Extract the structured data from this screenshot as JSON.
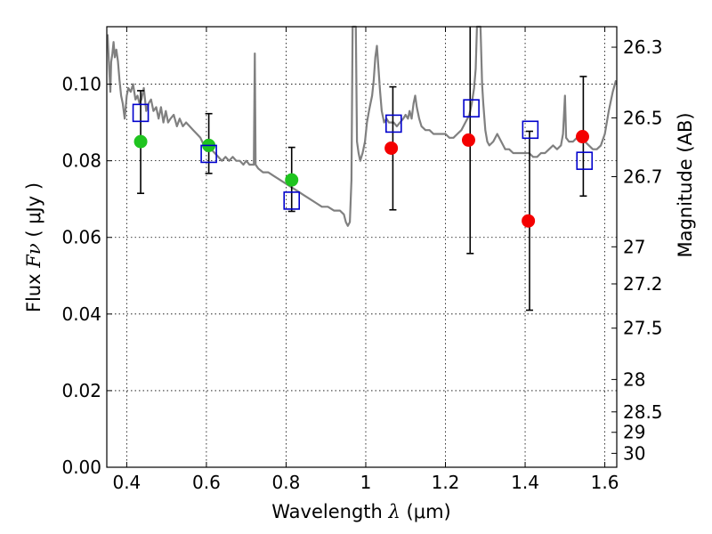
{
  "chart_data": {
    "type": "scatter",
    "xlabel": {
      "prefix": "Wavelength",
      "symbol": "λ",
      "unit": "(μm)"
    },
    "ylabel": {
      "prefix": "Flux",
      "symbol": "Fν",
      "unit": "( μJy )"
    },
    "y2label": "Magnitude (AB)",
    "xlim": [
      0.35,
      1.63
    ],
    "ylim": [
      0.0,
      0.115
    ],
    "x_ticks": [
      0.4,
      0.6,
      0.8,
      1.0,
      1.2,
      1.4,
      1.6
    ],
    "x_tick_labels": [
      "0.4",
      "0.6",
      "0.8",
      "1",
      "1.2",
      "1.4",
      "1.6"
    ],
    "y_ticks": [
      0.0,
      0.02,
      0.04,
      0.06,
      0.08,
      0.1
    ],
    "y_tick_labels": [
      "0.00",
      "0.02",
      "0.04",
      "0.06",
      "0.08",
      "0.10"
    ],
    "y2_ticks": [
      {
        "label": "26.3",
        "mag": 26.3
      },
      {
        "label": "26.5",
        "mag": 26.5
      },
      {
        "label": "26.7",
        "mag": 26.7
      },
      {
        "label": "27",
        "mag": 27.0
      },
      {
        "label": "27.2",
        "mag": 27.2
      },
      {
        "label": "27.5",
        "mag": 27.5
      },
      {
        "label": "28",
        "mag": 28.0
      },
      {
        "label": "28.5",
        "mag": 28.5
      },
      {
        "label": "29",
        "mag": 29.0
      },
      {
        "label": "30",
        "mag": 30.0
      }
    ],
    "grid": true,
    "colors": {
      "model": "#808080",
      "green": "#1fc41f",
      "red": "#f40000",
      "square": "#0000cc",
      "errorbar": "#000000"
    },
    "series": [
      {
        "type": "line",
        "color": "#808080",
        "points": [
          [
            0.352,
            0.113
          ],
          [
            0.356,
            0.104
          ],
          [
            0.359,
            0.098
          ],
          [
            0.361,
            0.1058
          ],
          [
            0.364,
            0.108
          ],
          [
            0.367,
            0.111
          ],
          [
            0.37,
            0.107
          ],
          [
            0.374,
            0.109
          ],
          [
            0.378,
            0.106
          ],
          [
            0.382,
            0.101
          ],
          [
            0.386,
            0.097
          ],
          [
            0.39,
            0.095
          ],
          [
            0.395,
            0.091
          ],
          [
            0.4,
            0.097
          ],
          [
            0.404,
            0.099
          ],
          [
            0.41,
            0.098
          ],
          [
            0.416,
            0.1
          ],
          [
            0.422,
            0.096
          ],
          [
            0.427,
            0.097
          ],
          [
            0.432,
            0.095
          ],
          [
            0.437,
            0.096
          ],
          [
            0.443,
            0.099
          ],
          [
            0.449,
            0.093
          ],
          [
            0.455,
            0.095
          ],
          [
            0.461,
            0.096
          ],
          [
            0.467,
            0.093
          ],
          [
            0.474,
            0.094
          ],
          [
            0.48,
            0.091
          ],
          [
            0.486,
            0.094
          ],
          [
            0.492,
            0.09
          ],
          [
            0.498,
            0.093
          ],
          [
            0.504,
            0.09
          ],
          [
            0.51,
            0.091
          ],
          [
            0.518,
            0.092
          ],
          [
            0.526,
            0.089
          ],
          [
            0.533,
            0.091
          ],
          [
            0.541,
            0.089
          ],
          [
            0.549,
            0.09
          ],
          [
            0.558,
            0.089
          ],
          [
            0.567,
            0.088
          ],
          [
            0.576,
            0.087
          ],
          [
            0.585,
            0.086
          ],
          [
            0.594,
            0.084
          ],
          [
            0.603,
            0.084
          ],
          [
            0.612,
            0.083
          ],
          [
            0.621,
            0.082
          ],
          [
            0.63,
            0.081
          ],
          [
            0.639,
            0.08
          ],
          [
            0.648,
            0.081
          ],
          [
            0.657,
            0.08
          ],
          [
            0.666,
            0.081
          ],
          [
            0.675,
            0.08
          ],
          [
            0.684,
            0.08
          ],
          [
            0.693,
            0.079
          ],
          [
            0.7,
            0.08
          ],
          [
            0.708,
            0.079
          ],
          [
            0.715,
            0.079
          ],
          [
            0.719,
            0.079
          ],
          [
            0.7215,
            0.108
          ],
          [
            0.7235,
            0.079
          ],
          [
            0.73,
            0.078
          ],
          [
            0.742,
            0.077
          ],
          [
            0.755,
            0.077
          ],
          [
            0.77,
            0.076
          ],
          [
            0.785,
            0.075
          ],
          [
            0.8,
            0.074
          ],
          [
            0.815,
            0.073
          ],
          [
            0.83,
            0.072
          ],
          [
            0.845,
            0.071
          ],
          [
            0.86,
            0.07
          ],
          [
            0.875,
            0.069
          ],
          [
            0.89,
            0.068
          ],
          [
            0.905,
            0.068
          ],
          [
            0.92,
            0.067
          ],
          [
            0.935,
            0.067
          ],
          [
            0.945,
            0.066
          ],
          [
            0.95,
            0.064
          ],
          [
            0.955,
            0.063
          ],
          [
            0.96,
            0.064
          ],
          [
            0.964,
            0.075
          ],
          [
            0.967,
            0.115
          ],
          [
            0.975,
            0.115
          ],
          [
            0.978,
            0.085
          ],
          [
            0.982,
            0.082
          ],
          [
            0.986,
            0.08
          ],
          [
            0.992,
            0.082
          ],
          [
            0.998,
            0.085
          ],
          [
            1.003,
            0.09
          ],
          [
            1.008,
            0.093
          ],
          [
            1.012,
            0.095
          ],
          [
            1.016,
            0.097
          ],
          [
            1.02,
            0.101
          ],
          [
            1.024,
            0.107
          ],
          [
            1.028,
            0.11
          ],
          [
            1.032,
            0.104
          ],
          [
            1.036,
            0.098
          ],
          [
            1.04,
            0.093
          ],
          [
            1.046,
            0.09
          ],
          [
            1.052,
            0.091
          ],
          [
            1.058,
            0.09
          ],
          [
            1.064,
            0.09
          ],
          [
            1.07,
            0.09
          ],
          [
            1.078,
            0.089
          ],
          [
            1.086,
            0.09
          ],
          [
            1.094,
            0.091
          ],
          [
            1.1,
            0.092
          ],
          [
            1.106,
            0.091
          ],
          [
            1.11,
            0.093
          ],
          [
            1.115,
            0.091
          ],
          [
            1.12,
            0.095
          ],
          [
            1.124,
            0.097
          ],
          [
            1.128,
            0.094
          ],
          [
            1.134,
            0.091
          ],
          [
            1.14,
            0.089
          ],
          [
            1.15,
            0.088
          ],
          [
            1.16,
            0.088
          ],
          [
            1.17,
            0.087
          ],
          [
            1.18,
            0.087
          ],
          [
            1.19,
            0.087
          ],
          [
            1.2,
            0.087
          ],
          [
            1.21,
            0.086
          ],
          [
            1.22,
            0.086
          ],
          [
            1.23,
            0.087
          ],
          [
            1.24,
            0.088
          ],
          [
            1.25,
            0.09
          ],
          [
            1.26,
            0.092
          ],
          [
            1.266,
            0.095
          ],
          [
            1.272,
            0.099
          ],
          [
            1.276,
            0.104
          ],
          [
            1.279,
            0.115
          ],
          [
            1.288,
            0.115
          ],
          [
            1.292,
            0.1
          ],
          [
            1.295,
            0.095
          ],
          [
            1.3,
            0.088
          ],
          [
            1.305,
            0.085
          ],
          [
            1.31,
            0.084
          ],
          [
            1.32,
            0.085
          ],
          [
            1.33,
            0.087
          ],
          [
            1.34,
            0.085
          ],
          [
            1.35,
            0.083
          ],
          [
            1.36,
            0.083
          ],
          [
            1.37,
            0.082
          ],
          [
            1.38,
            0.082
          ],
          [
            1.39,
            0.082
          ],
          [
            1.4,
            0.082
          ],
          [
            1.41,
            0.082
          ],
          [
            1.42,
            0.081
          ],
          [
            1.43,
            0.081
          ],
          [
            1.44,
            0.082
          ],
          [
            1.45,
            0.082
          ],
          [
            1.46,
            0.083
          ],
          [
            1.47,
            0.084
          ],
          [
            1.48,
            0.083
          ],
          [
            1.49,
            0.084
          ],
          [
            1.495,
            0.087
          ],
          [
            1.5,
            0.097
          ],
          [
            1.503,
            0.086
          ],
          [
            1.51,
            0.085
          ],
          [
            1.52,
            0.085
          ],
          [
            1.53,
            0.086
          ],
          [
            1.54,
            0.085
          ],
          [
            1.55,
            0.085
          ],
          [
            1.56,
            0.084
          ],
          [
            1.57,
            0.083
          ],
          [
            1.58,
            0.083
          ],
          [
            1.59,
            0.084
          ],
          [
            1.6,
            0.087
          ],
          [
            1.61,
            0.093
          ],
          [
            1.62,
            0.098
          ],
          [
            1.628,
            0.101
          ]
        ]
      },
      {
        "type": "scatter",
        "marker": "circle",
        "color": "#1fc41f",
        "points": [
          {
            "x": 0.435,
            "y": 0.085
          },
          {
            "x": 0.606,
            "y": 0.084
          },
          {
            "x": 0.814,
            "y": 0.075
          }
        ]
      },
      {
        "type": "scatter",
        "marker": "circle",
        "color": "#f40000",
        "points": [
          {
            "x": 1.064,
            "y": 0.0833
          },
          {
            "x": 1.258,
            "y": 0.0854
          },
          {
            "x": 1.408,
            "y": 0.0643
          },
          {
            "x": 1.544,
            "y": 0.0863
          }
        ]
      },
      {
        "type": "scatter",
        "marker": "open-square",
        "color": "#0000cc",
        "points": [
          {
            "x": 0.435,
            "y": 0.0925
          },
          {
            "x": 0.606,
            "y": 0.0818
          },
          {
            "x": 0.814,
            "y": 0.0696
          },
          {
            "x": 1.07,
            "y": 0.0897
          },
          {
            "x": 1.265,
            "y": 0.0937
          },
          {
            "x": 1.413,
            "y": 0.0881
          },
          {
            "x": 1.549,
            "y": 0.08
          }
        ]
      },
      {
        "type": "errorbar",
        "color": "#000000",
        "bars": [
          {
            "x": 0.435,
            "low": 0.0715,
            "high": 0.0983
          },
          {
            "x": 0.606,
            "low": 0.0767,
            "high": 0.0923
          },
          {
            "x": 0.814,
            "low": 0.0668,
            "high": 0.0835
          },
          {
            "x": 1.068,
            "low": 0.0672,
            "high": 0.0993
          },
          {
            "x": 1.262,
            "low": 0.0558,
            "high": 0.115
          },
          {
            "x": 1.411,
            "low": 0.041,
            "high": 0.0877
          },
          {
            "x": 1.546,
            "low": 0.0708,
            "high": 0.102
          }
        ]
      }
    ]
  }
}
